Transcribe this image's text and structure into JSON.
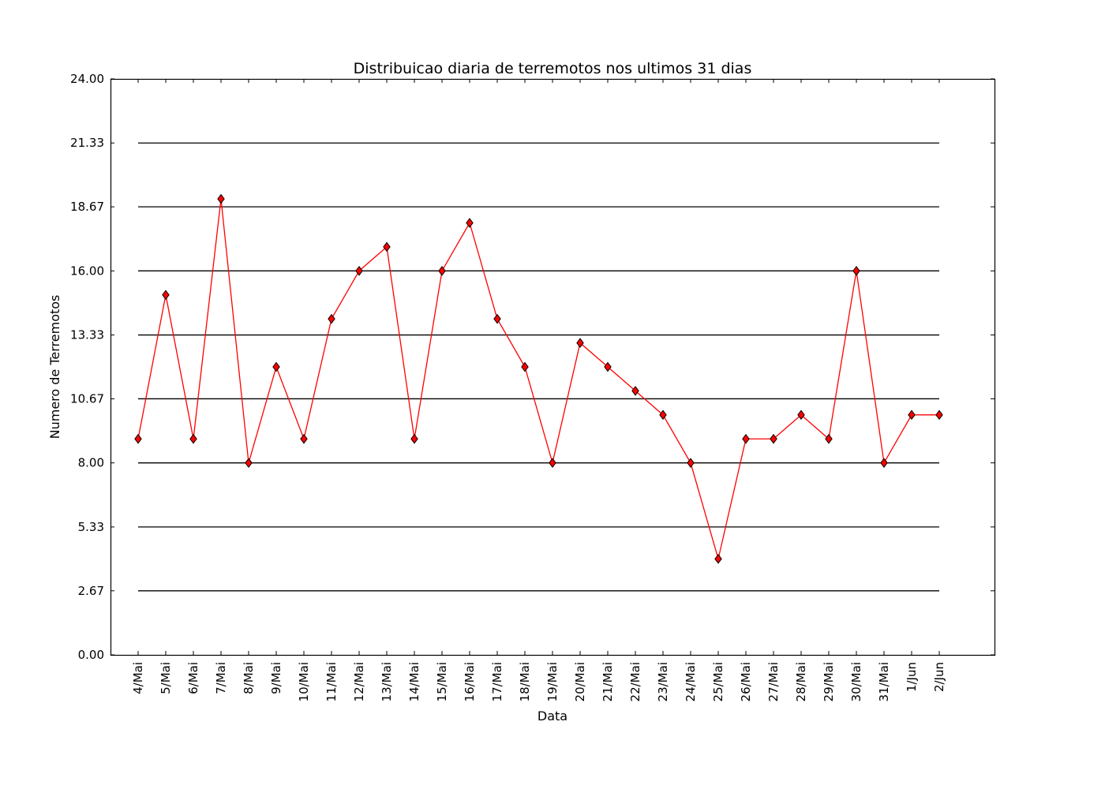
{
  "chart_data": {
    "type": "line",
    "title": "Distribuicao diaria de terremotos nos ultimos 31 dias",
    "xlabel": "Data",
    "ylabel": "Numero de Terremotos",
    "ylim": [
      0,
      24
    ],
    "yticks": [
      "0.00",
      "2.67",
      "5.33",
      "8.00",
      "10.67",
      "13.33",
      "16.00",
      "18.67",
      "21.33",
      "24.00"
    ],
    "categories": [
      "4/Mai",
      "5/Mai",
      "6/Mai",
      "7/Mai",
      "8/Mai",
      "9/Mai",
      "10/Mai",
      "11/Mai",
      "12/Mai",
      "13/Mai",
      "14/Mai",
      "15/Mai",
      "16/Mai",
      "17/Mai",
      "18/Mai",
      "19/Mai",
      "20/Mai",
      "21/Mai",
      "22/Mai",
      "23/Mai",
      "24/Mai",
      "25/Mai",
      "26/Mai",
      "27/Mai",
      "28/Mai",
      "29/Mai",
      "30/Mai",
      "31/Mai",
      "1/Jun",
      "2/Jun"
    ],
    "series": [
      {
        "values": [
          9,
          15,
          9,
          19,
          8,
          12,
          9,
          14,
          16,
          17,
          9,
          16,
          18,
          14,
          12,
          8,
          13,
          12,
          11,
          10,
          8,
          4,
          9,
          9,
          10,
          9,
          16,
          8,
          10,
          10
        ],
        "color": "#ff0000",
        "marker": "diamond"
      }
    ],
    "grid": "horizontal lines at y ticks",
    "legend": "none"
  }
}
